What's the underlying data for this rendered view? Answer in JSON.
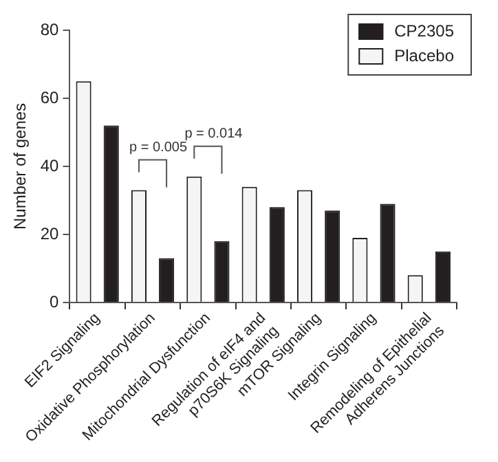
{
  "chart_data": {
    "type": "bar",
    "ylabel": "Number of genes",
    "categories": [
      "EIF2 Signaling",
      "Oxidative Phosphorylation",
      "Mitochondrial Dysfunction",
      "Regulation of eIF4 and\np70S6K Signaling",
      "mTOR Signaling",
      "Integrin Signaling",
      "Remodeling of Epithelial\nAdherens Junctions"
    ],
    "series": [
      {
        "name": "Placebo",
        "color": "#f5f5f5",
        "values": [
          65,
          33,
          37,
          34,
          33,
          19,
          8
        ]
      },
      {
        "name": "CP2305",
        "color": "#231f20",
        "values": [
          52,
          13,
          18,
          28,
          27,
          29,
          15
        ]
      }
    ],
    "ylim": [
      0,
      80
    ],
    "yticks": [
      0,
      20,
      40,
      60,
      80
    ],
    "grid": false,
    "legend": "top right",
    "annotations": [
      "p = 0.005",
      "p = 0.014"
    ]
  }
}
